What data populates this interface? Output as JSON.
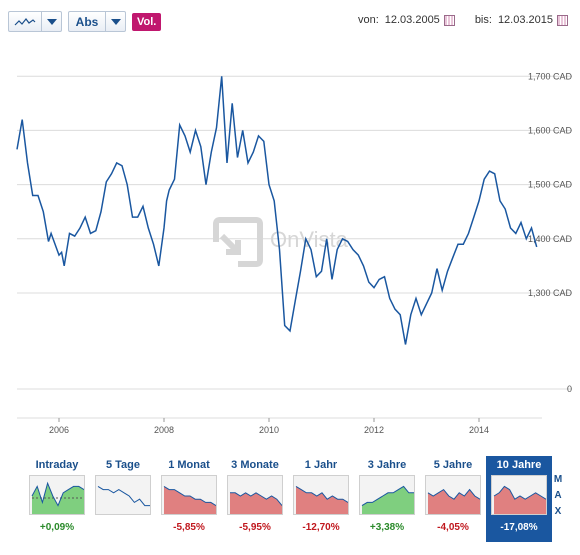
{
  "toolbar": {
    "chart_type_icon": "line-chart-icon",
    "scale_label": "Abs",
    "volume_label": "Vol."
  },
  "date_range": {
    "from_label": "von:",
    "from_value": "12.03.2005",
    "to_label": "bis:",
    "to_value": "12.03.2015"
  },
  "watermark": "OnVista",
  "colors": {
    "line": "#1a57a0",
    "positive_fill": "#7fcf7f",
    "negative_fill": "#e08080",
    "active_tab": "#1a57a0"
  },
  "chart_data": {
    "type": "line",
    "title": "",
    "xlabel": "",
    "ylabel": "",
    "ylim": [
      0,
      1750
    ],
    "y_axis_breaks": [
      0,
      1300
    ],
    "y_ticks": [
      {
        "value": 1700,
        "label": "1,700 CAD"
      },
      {
        "value": 1600,
        "label": "1,600 CAD"
      },
      {
        "value": 1500,
        "label": "1,500 CAD"
      },
      {
        "value": 1400,
        "label": "1,400 CAD"
      },
      {
        "value": 1300,
        "label": "1,300 CAD"
      },
      {
        "value": 0,
        "label": "0"
      }
    ],
    "x_ticks": [
      {
        "value": 2006,
        "label": "2006"
      },
      {
        "value": 2008,
        "label": "2008"
      },
      {
        "value": 2010,
        "label": "2010"
      },
      {
        "value": 2012,
        "label": "2012"
      },
      {
        "value": 2014,
        "label": "2014"
      }
    ],
    "xlim": [
      2005.2,
      2015.2
    ],
    "grid": true,
    "series": [
      {
        "values_x": [
          2005.2,
          2005.3,
          2005.4,
          2005.5,
          2005.6,
          2005.7,
          2005.8,
          2005.85,
          2006.0,
          2006.05,
          2006.1,
          2006.2,
          2006.3,
          2006.4,
          2006.5,
          2006.6,
          2006.7,
          2006.8,
          2006.9,
          2007.0,
          2007.1,
          2007.2,
          2007.3,
          2007.4,
          2007.5,
          2007.6,
          2007.7,
          2007.8,
          2007.9,
          2008.0,
          2008.05,
          2008.1,
          2008.2,
          2008.3,
          2008.4,
          2008.5,
          2008.6,
          2008.7,
          2008.8,
          2008.9,
          2009.0,
          2009.1,
          2009.2,
          2009.3,
          2009.4,
          2009.5,
          2009.6,
          2009.7,
          2009.8,
          2009.9,
          2010.0,
          2010.1,
          2010.2,
          2010.3,
          2010.4,
          2010.5,
          2010.6,
          2010.7,
          2010.8,
          2010.9,
          2011.0,
          2011.1,
          2011.2,
          2011.3,
          2011.4,
          2011.5,
          2011.6,
          2011.7,
          2011.8,
          2011.9,
          2012.0,
          2012.1,
          2012.2,
          2012.3,
          2012.4,
          2012.5,
          2012.6,
          2012.7,
          2012.8,
          2012.9,
          2013.0,
          2013.1,
          2013.2,
          2013.3,
          2013.4,
          2013.5,
          2013.6,
          2013.7,
          2013.8,
          2013.9,
          2014.0,
          2014.1,
          2014.2,
          2014.3,
          2014.4,
          2014.5,
          2014.6,
          2014.7,
          2014.8,
          2014.9,
          2015.0,
          2015.1
        ],
        "values": [
          1565,
          1620,
          1540,
          1480,
          1480,
          1450,
          1395,
          1410,
          1370,
          1375,
          1350,
          1410,
          1405,
          1420,
          1440,
          1410,
          1415,
          1450,
          1505,
          1520,
          1540,
          1535,
          1500,
          1440,
          1440,
          1460,
          1420,
          1390,
          1350,
          1420,
          1470,
          1490,
          1510,
          1610,
          1590,
          1560,
          1600,
          1570,
          1500,
          1560,
          1605,
          1700,
          1540,
          1650,
          1550,
          1600,
          1540,
          1560,
          1590,
          1580,
          1500,
          1470,
          1380,
          1240,
          1230,
          1285,
          1340,
          1400,
          1380,
          1330,
          1340,
          1400,
          1325,
          1380,
          1400,
          1395,
          1380,
          1370,
          1350,
          1320,
          1310,
          1325,
          1330,
          1290,
          1270,
          1260,
          1205,
          1260,
          1290,
          1260,
          1280,
          1300,
          1345,
          1305,
          1340,
          1365,
          1390,
          1390,
          1410,
          1440,
          1470,
          1510,
          1525,
          1520,
          1470,
          1455,
          1420,
          1410,
          1430,
          1400,
          1420,
          1385
        ]
      }
    ]
  },
  "periods": [
    {
      "label": "Intraday",
      "change": "+0,09%",
      "trend": "positive",
      "shape": [
        5,
        8,
        3,
        9,
        5,
        2,
        6,
        7,
        8,
        8,
        7
      ]
    },
    {
      "label": "5 Tage",
      "change": "",
      "trend": "none",
      "shape": [
        8,
        7,
        7,
        6,
        7,
        6,
        5,
        3,
        4,
        2,
        2
      ]
    },
    {
      "label": "1 Monat",
      "change": "-5,85%",
      "trend": "negative",
      "shape": [
        8,
        7,
        7,
        6,
        5,
        5,
        4,
        4,
        3,
        3,
        2
      ]
    },
    {
      "label": "3 Monate",
      "change": "-5,95%",
      "trend": "negative",
      "shape": [
        6,
        6,
        5,
        6,
        5,
        6,
        5,
        4,
        5,
        4,
        2
      ]
    },
    {
      "label": "1 Jahr",
      "change": "-12,70%",
      "trend": "negative",
      "shape": [
        8,
        7,
        6,
        6,
        5,
        6,
        4,
        5,
        4,
        4,
        3
      ]
    },
    {
      "label": "3 Jahre",
      "change": "+3,38%",
      "trend": "positive",
      "shape": [
        2,
        3,
        3,
        4,
        5,
        6,
        6,
        7,
        8,
        6,
        6
      ]
    },
    {
      "label": "5 Jahre",
      "change": "-4,05%",
      "trend": "negative",
      "shape": [
        6,
        5,
        6,
        7,
        5,
        4,
        6,
        5,
        7,
        5,
        4
      ]
    },
    {
      "label": "10 Jahre",
      "change": "-17,08%",
      "trend": "negative",
      "shape": [
        5,
        6,
        8,
        7,
        4,
        5,
        4,
        5,
        6,
        5,
        4
      ]
    }
  ],
  "max_label": [
    "M",
    "A",
    "X"
  ]
}
